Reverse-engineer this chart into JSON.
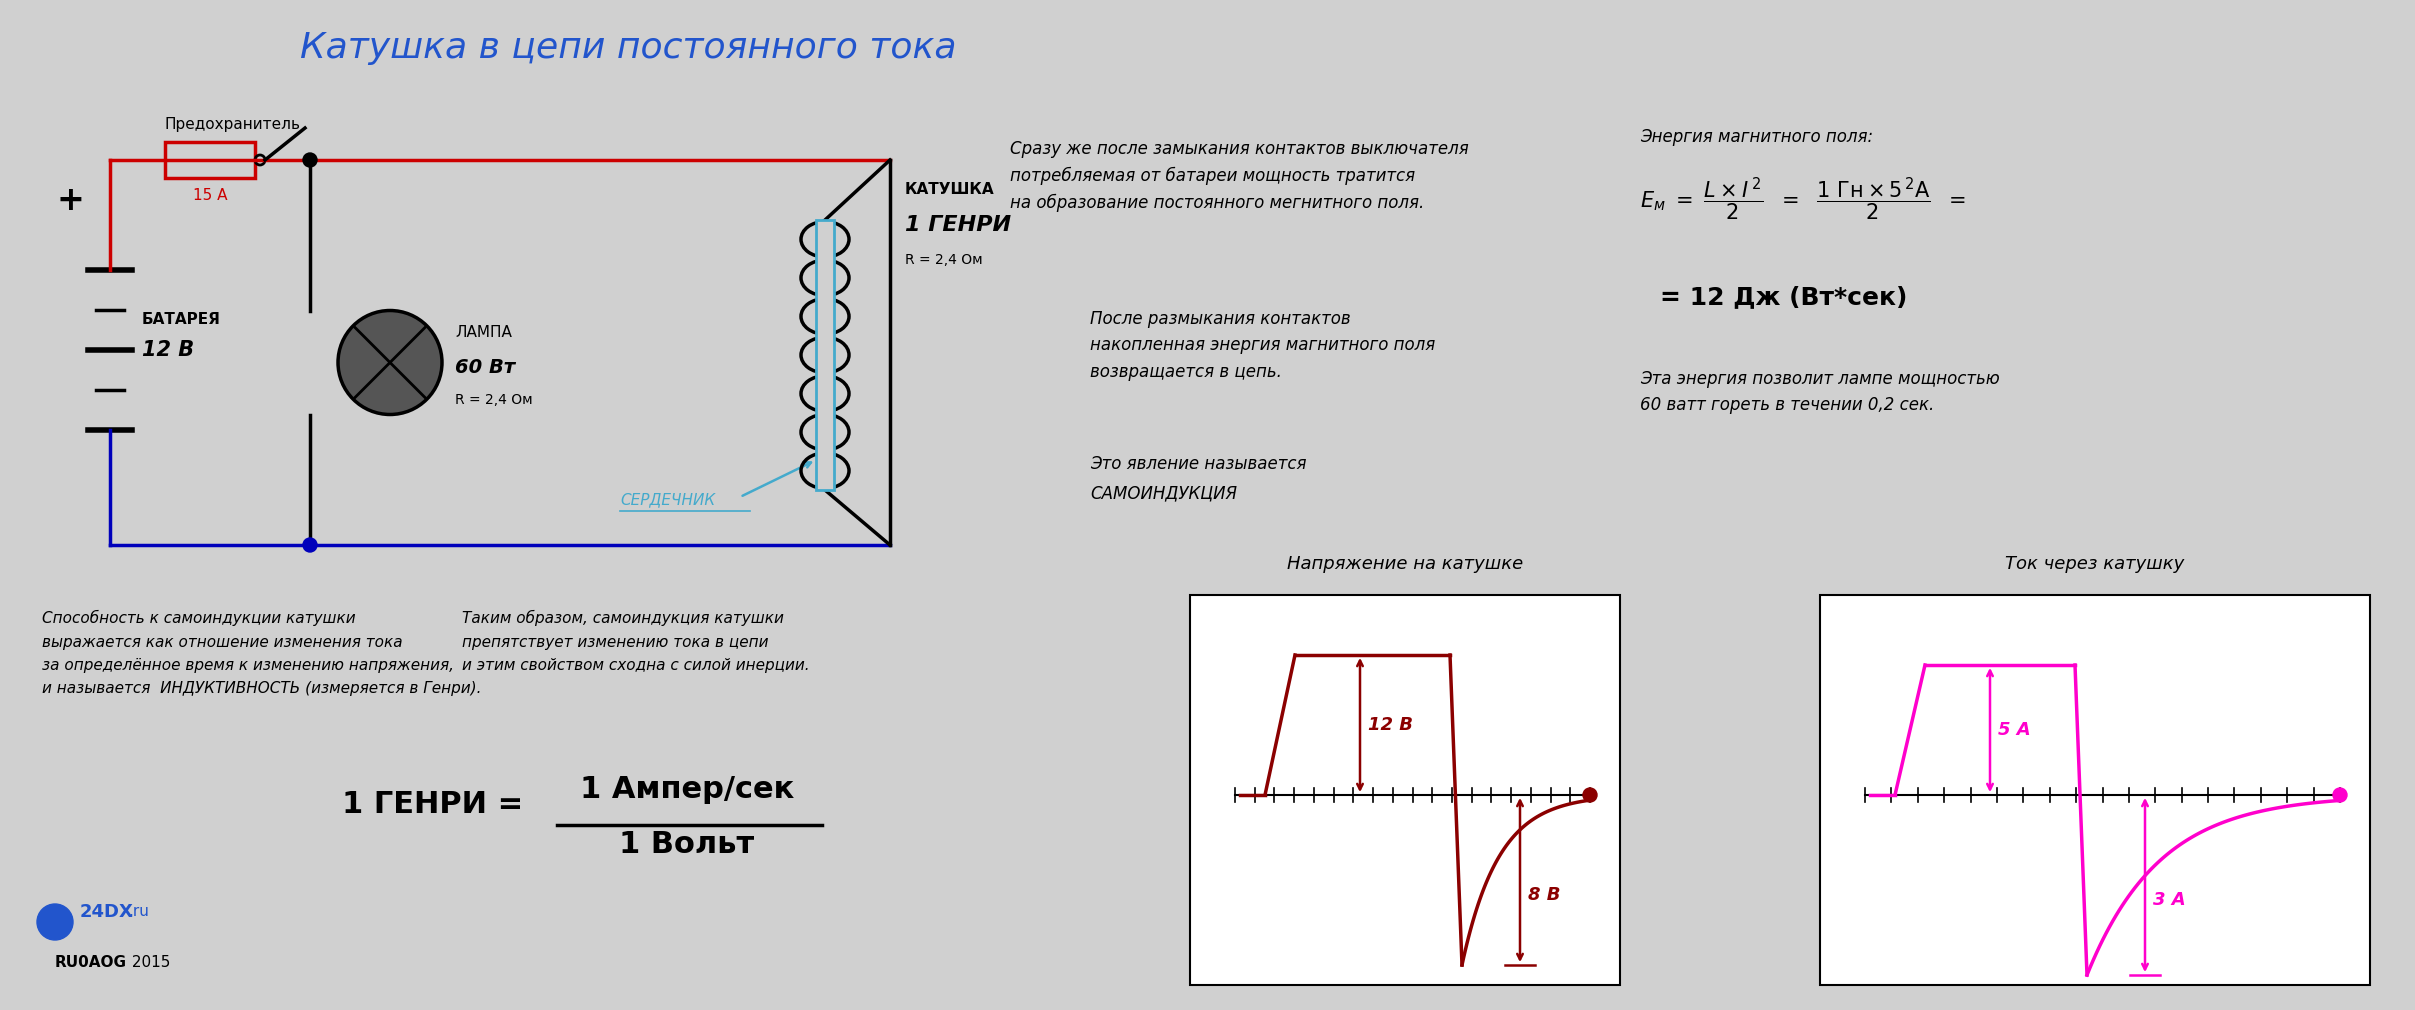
{
  "title": "Катушка в цепи постоянного тока",
  "title_color": "#2255cc",
  "title_fontsize": 26,
  "bg_color": "#d0d0d0",
  "graph1_title": "Напряжение на катушке",
  "graph2_title": "Ток через катушку",
  "graph1_color": "#8b0000",
  "graph2_color": "#ff00cc",
  "graph1_label1": "12 В",
  "graph1_label2": "8 В",
  "graph2_label1": "5 А",
  "graph2_label2": "3 А",
  "text_block1": "Сразу же после замыкания контактов выключателя\nпотребляемая от батареи мощность тратится\nна образование постоянного мегнитного поля.",
  "text_block2": "После размыкания контактов\nнакопленная энергия магнитного поля\nвозвращается в цепь.",
  "text_block3": "Это явление называется\nСАМОИНДУКЦИЯ",
  "text_block4": "Энергия магнитного поля:",
  "text_block5": "= 12 Дж (Вт*сек)",
  "text_block6": "Эта энергия позволит лампе мощностью\n60 ватт гореть в течении 0,2 сек.",
  "text_left1": "Способность к самоиндукции катушки\nвыражается как отношение изменения тока\nза определённое время к изменению напряжения,\nи называется  ИНДУКТИВНОСТЬ (измеряется в Генри).",
  "text_left2": "Таким образом, самоиндукция катушки\nпрепятствует изменению тока в цепи\nи этим свойством сходна с силой инерции.",
  "circuit_wire_red": "#cc0000",
  "circuit_wire_blue": "#0000bb",
  "circuit_wire_black": "#000000",
  "coil_color": "#000000",
  "serdechnik_color": "#44aacc",
  "logo_color": "#2255cc",
  "black": "#000000"
}
